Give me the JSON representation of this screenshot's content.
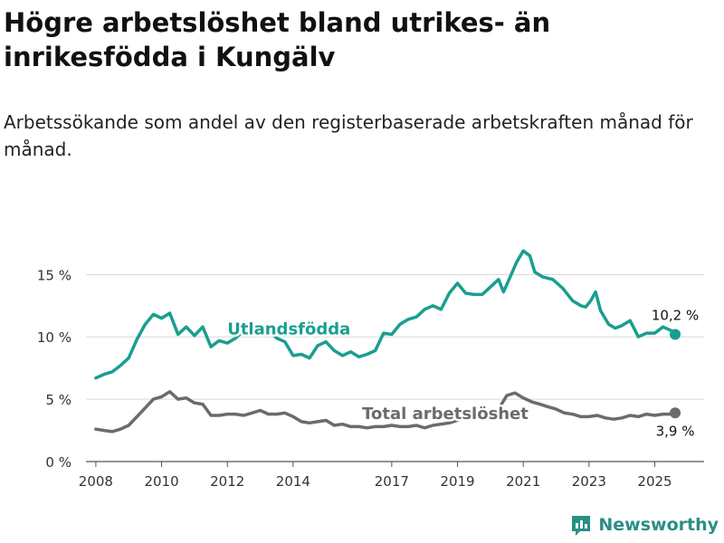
{
  "title": "Högre arbetslöshet bland utrikes- än inrikesfödda i Kungälv",
  "subtitle": "Arbetssökande som andel av den registerbaserade arbetskraften månad för månad.",
  "brand": {
    "name": "Newsworthy",
    "icon": "newsworthy-logo-icon"
  },
  "chart_data": {
    "type": "line",
    "grid": "horizontal",
    "ylim": [
      0,
      18
    ],
    "xlim": [
      2007.7,
      2026.5
    ],
    "y_ticks": [
      0,
      5,
      10,
      15
    ],
    "y_tick_labels": [
      "0 %",
      "5 %",
      "10 %",
      "15 %"
    ],
    "x_ticks": [
      2008,
      2010,
      2012,
      2014,
      2017,
      2019,
      2021,
      2023,
      2025
    ],
    "x_tick_labels": [
      "2008",
      "2010",
      "2012",
      "2014",
      "2017",
      "2019",
      "2021",
      "2023",
      "2025"
    ],
    "series": [
      {
        "name": "Utlandsfödda",
        "color": "#1a9e8f",
        "end_label": "10,2 %",
        "points": [
          [
            2008.0,
            6.7
          ],
          [
            2008.25,
            7.0
          ],
          [
            2008.5,
            7.2
          ],
          [
            2008.75,
            7.7
          ],
          [
            2009.0,
            8.3
          ],
          [
            2009.25,
            9.8
          ],
          [
            2009.5,
            11.0
          ],
          [
            2009.75,
            11.8
          ],
          [
            2010.0,
            11.5
          ],
          [
            2010.25,
            11.9
          ],
          [
            2010.5,
            10.2
          ],
          [
            2010.75,
            10.8
          ],
          [
            2011.0,
            10.1
          ],
          [
            2011.25,
            10.8
          ],
          [
            2011.5,
            9.2
          ],
          [
            2011.75,
            9.7
          ],
          [
            2012.0,
            9.5
          ],
          [
            2012.25,
            9.9
          ],
          [
            2012.5,
            10.5
          ],
          [
            2012.75,
            10.8
          ],
          [
            2013.0,
            10.2
          ],
          [
            2013.25,
            10.5
          ],
          [
            2013.5,
            9.9
          ],
          [
            2013.75,
            9.6
          ],
          [
            2014.0,
            8.5
          ],
          [
            2014.25,
            8.6
          ],
          [
            2014.5,
            8.3
          ],
          [
            2014.75,
            9.3
          ],
          [
            2015.0,
            9.6
          ],
          [
            2015.25,
            8.9
          ],
          [
            2015.5,
            8.5
          ],
          [
            2015.75,
            8.8
          ],
          [
            2016.0,
            8.4
          ],
          [
            2016.25,
            8.6
          ],
          [
            2016.5,
            8.9
          ],
          [
            2016.75,
            10.3
          ],
          [
            2017.0,
            10.2
          ],
          [
            2017.25,
            11.0
          ],
          [
            2017.5,
            11.4
          ],
          [
            2017.75,
            11.6
          ],
          [
            2018.0,
            12.2
          ],
          [
            2018.25,
            12.5
          ],
          [
            2018.5,
            12.2
          ],
          [
            2018.75,
            13.5
          ],
          [
            2019.0,
            14.3
          ],
          [
            2019.25,
            13.5
          ],
          [
            2019.5,
            13.4
          ],
          [
            2019.75,
            13.4
          ],
          [
            2020.0,
            14.0
          ],
          [
            2020.25,
            14.6
          ],
          [
            2020.4,
            13.6
          ],
          [
            2020.6,
            14.8
          ],
          [
            2020.8,
            16.0
          ],
          [
            2021.0,
            16.9
          ],
          [
            2021.2,
            16.5
          ],
          [
            2021.35,
            15.2
          ],
          [
            2021.6,
            14.8
          ],
          [
            2021.9,
            14.6
          ],
          [
            2022.2,
            13.9
          ],
          [
            2022.5,
            12.9
          ],
          [
            2022.75,
            12.5
          ],
          [
            2022.9,
            12.4
          ],
          [
            2023.05,
            12.9
          ],
          [
            2023.2,
            13.6
          ],
          [
            2023.35,
            12.1
          ],
          [
            2023.6,
            11.0
          ],
          [
            2023.8,
            10.7
          ],
          [
            2024.0,
            10.9
          ],
          [
            2024.25,
            11.3
          ],
          [
            2024.5,
            10.0
          ],
          [
            2024.75,
            10.3
          ],
          [
            2025.0,
            10.3
          ],
          [
            2025.25,
            10.8
          ],
          [
            2025.5,
            10.5
          ],
          [
            2025.62,
            10.2
          ]
        ]
      },
      {
        "name": "Total arbetslöshet",
        "color": "#6b6b6e",
        "end_label": "3,9 %",
        "points": [
          [
            2008.0,
            2.6
          ],
          [
            2008.25,
            2.5
          ],
          [
            2008.5,
            2.4
          ],
          [
            2008.75,
            2.6
          ],
          [
            2009.0,
            2.9
          ],
          [
            2009.25,
            3.6
          ],
          [
            2009.5,
            4.3
          ],
          [
            2009.75,
            5.0
          ],
          [
            2010.0,
            5.2
          ],
          [
            2010.25,
            5.6
          ],
          [
            2010.5,
            5.0
          ],
          [
            2010.75,
            5.1
          ],
          [
            2011.0,
            4.7
          ],
          [
            2011.25,
            4.6
          ],
          [
            2011.5,
            3.7
          ],
          [
            2011.75,
            3.7
          ],
          [
            2012.0,
            3.8
          ],
          [
            2012.25,
            3.8
          ],
          [
            2012.5,
            3.7
          ],
          [
            2012.75,
            3.9
          ],
          [
            2013.0,
            4.1
          ],
          [
            2013.25,
            3.8
          ],
          [
            2013.5,
            3.8
          ],
          [
            2013.75,
            3.9
          ],
          [
            2014.0,
            3.6
          ],
          [
            2014.25,
            3.2
          ],
          [
            2014.5,
            3.1
          ],
          [
            2014.75,
            3.2
          ],
          [
            2015.0,
            3.3
          ],
          [
            2015.25,
            2.9
          ],
          [
            2015.5,
            3.0
          ],
          [
            2015.75,
            2.8
          ],
          [
            2016.0,
            2.8
          ],
          [
            2016.25,
            2.7
          ],
          [
            2016.5,
            2.8
          ],
          [
            2016.75,
            2.8
          ],
          [
            2017.0,
            2.9
          ],
          [
            2017.25,
            2.8
          ],
          [
            2017.5,
            2.8
          ],
          [
            2017.75,
            2.9
          ],
          [
            2018.0,
            2.7
          ],
          [
            2018.25,
            2.9
          ],
          [
            2018.5,
            3.0
          ],
          [
            2018.75,
            3.1
          ],
          [
            2019.0,
            3.3
          ],
          [
            2019.25,
            3.5
          ],
          [
            2019.5,
            3.6
          ],
          [
            2019.75,
            3.8
          ],
          [
            2020.0,
            3.9
          ],
          [
            2020.25,
            4.2
          ],
          [
            2020.5,
            5.3
          ],
          [
            2020.75,
            5.5
          ],
          [
            2021.0,
            5.1
          ],
          [
            2021.25,
            4.8
          ],
          [
            2021.5,
            4.6
          ],
          [
            2021.75,
            4.4
          ],
          [
            2022.0,
            4.2
          ],
          [
            2022.25,
            3.9
          ],
          [
            2022.5,
            3.8
          ],
          [
            2022.75,
            3.6
          ],
          [
            2023.0,
            3.6
          ],
          [
            2023.25,
            3.7
          ],
          [
            2023.5,
            3.5
          ],
          [
            2023.75,
            3.4
          ],
          [
            2024.0,
            3.5
          ],
          [
            2024.25,
            3.7
          ],
          [
            2024.5,
            3.6
          ],
          [
            2024.75,
            3.8
          ],
          [
            2025.0,
            3.7
          ],
          [
            2025.25,
            3.8
          ],
          [
            2025.5,
            3.8
          ],
          [
            2025.62,
            3.9
          ]
        ]
      }
    ]
  }
}
